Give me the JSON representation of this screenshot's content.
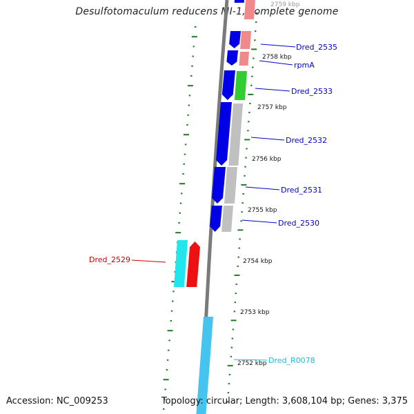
{
  "title": "Desulfotomaculum reducens MI-1, complete genome",
  "accession": "Accession: NC_009253",
  "topology": "Topology: circular; Length: 3,608,104 bp; Genes: 3,375",
  "colors": {
    "backbone": "#7a7a7a",
    "tick": "#1f7a1f",
    "cds_forward": "#0000e6",
    "cds_reverse_red": "#ee1111",
    "cds_reverse_cyan": "#22e6ee",
    "rrna": "#44c4ee",
    "cog_gray": "#c0c0c0",
    "cog_green": "#33cc33",
    "cog_pink": "#f08a8a",
    "label_blue": "#0000cc",
    "label_red": "#cc0000",
    "label_cyan": "#22b8dd"
  },
  "scale_labels": [
    {
      "text": "2759 kbp",
      "faded": true
    },
    {
      "text": "2758 kbp"
    },
    {
      "text": "2757 kbp"
    },
    {
      "text": "2756 kbp"
    },
    {
      "text": "2755 kbp"
    },
    {
      "text": "2754 kbp"
    },
    {
      "text": "2753 kbp"
    },
    {
      "text": "2752 kbp"
    }
  ],
  "gene_labels": [
    {
      "name": "Dred_2535",
      "color": "label_blue"
    },
    {
      "name": "rpmA",
      "color": "label_blue"
    },
    {
      "name": "Dred_2533",
      "color": "label_blue"
    },
    {
      "name": "Dred_2532",
      "color": "label_blue"
    },
    {
      "name": "Dred_2531",
      "color": "label_blue"
    },
    {
      "name": "Dred_2530",
      "color": "label_blue"
    },
    {
      "name": "Dred_2529",
      "color": "label_red"
    },
    {
      "name": "Dred_R0078",
      "color": "label_cyan"
    }
  ]
}
